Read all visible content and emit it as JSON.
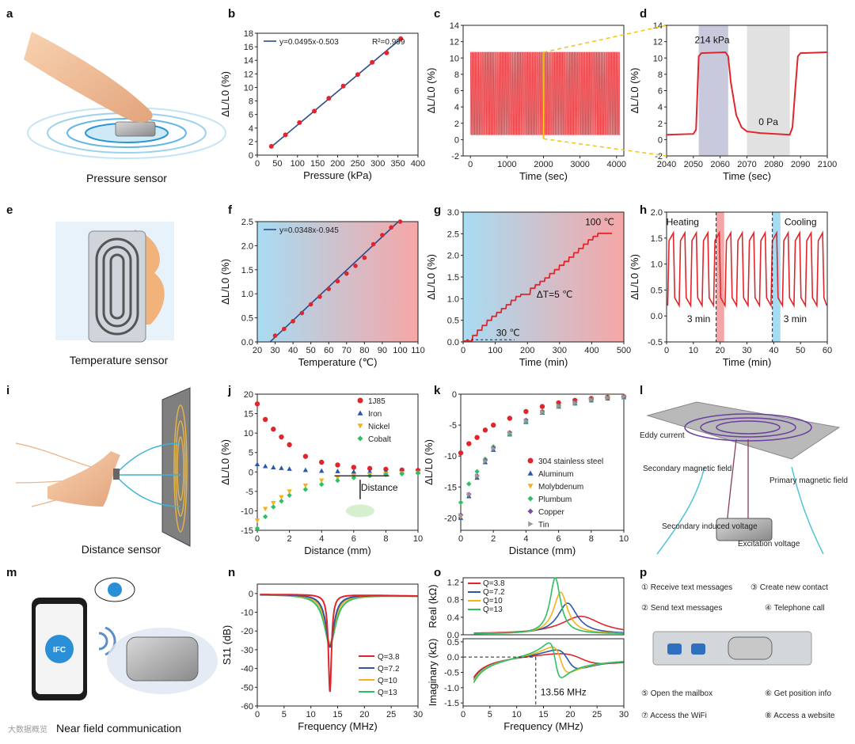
{
  "figure": {
    "panel_letters": [
      "a",
      "b",
      "c",
      "d",
      "e",
      "f",
      "g",
      "h",
      "i",
      "j",
      "k",
      "l",
      "m",
      "n",
      "o",
      "p"
    ],
    "captions": {
      "a": "Pressure sensor",
      "e": "Temperature sensor",
      "i": "Distance sensor",
      "m": "Near field communication"
    },
    "panel_i_label": "Distance",
    "watermark": "大数据概览",
    "panel_l": {
      "labels": [
        "Eddy current",
        "Secondary magnetic field",
        "Primary magnetic field",
        "Secondary induced voltage",
        "Excitation voltage"
      ]
    },
    "panel_m": {
      "logo_text": "IFC"
    },
    "panel_p": {
      "items": [
        "① Receive text messages",
        "③ Create new contact",
        "② Send text messages",
        "④ Telephone call",
        "⑤ Open the mailbox",
        "⑥ Get position info",
        "⑦ Access the WiFi",
        "⑧ Access a website"
      ]
    }
  },
  "chart_data": [
    {
      "id": "b",
      "type": "scatter",
      "xlabel": "Pressure (kPa)",
      "ylabel": "ΔL/L0 (%)",
      "xlim": [
        0,
        400
      ],
      "ylim": [
        0,
        18
      ],
      "xticks": [
        "0",
        "50",
        "100",
        "150",
        "200",
        "250",
        "300",
        "350",
        "400"
      ],
      "yticks": [
        "0",
        "2",
        "4",
        "6",
        "8",
        "10",
        "12",
        "14",
        "16",
        "18"
      ],
      "x": [
        35,
        70,
        105,
        142,
        178,
        214,
        250,
        286,
        322,
        357
      ],
      "y": [
        1.3,
        3.0,
        4.8,
        6.5,
        8.4,
        10.2,
        11.9,
        13.7,
        15.1,
        17.2
      ],
      "fit_label": "y=0.0495x-0.503",
      "r2_label": "R²=0.999",
      "fit_slope": 0.0495,
      "fit_intercept": -0.503,
      "fit_range": [
        35,
        357
      ]
    },
    {
      "id": "c",
      "type": "line",
      "xlabel": "Time (sec)",
      "ylabel": "ΔL/L0 (%)",
      "xlim": [
        -200,
        4200
      ],
      "ylim": [
        -2,
        14
      ],
      "xticks": [
        "0",
        "1000",
        "2000",
        "3000",
        "4000"
      ],
      "yticks": [
        "-2",
        "0",
        "2",
        "4",
        "6",
        "8",
        "10",
        "12",
        "14"
      ],
      "cycles": 100,
      "high": 10.7,
      "low": 0.6,
      "t_start": 0,
      "t_end": 4100,
      "highlight_range": [
        2000,
        2060
      ]
    },
    {
      "id": "d",
      "type": "line",
      "xlabel": "Time (sec)",
      "ylabel": "ΔL/L0 (%)",
      "xlim": [
        2040,
        2100
      ],
      "ylim": [
        -2,
        14
      ],
      "xticks": [
        "2040",
        "2050",
        "2060",
        "2070",
        "2080",
        "2090",
        "2100"
      ],
      "yticks": [
        "-2",
        "0",
        "2",
        "4",
        "6",
        "8",
        "10",
        "12",
        "14"
      ],
      "x": [
        2040,
        2050,
        2051,
        2052,
        2053,
        2062,
        2063,
        2064,
        2066,
        2068,
        2070,
        2075,
        2086,
        2087,
        2088,
        2089,
        2090,
        2100
      ],
      "y": [
        0.6,
        0.7,
        1.2,
        10.2,
        10.6,
        10.7,
        10.2,
        7.0,
        3.0,
        1.5,
        1.0,
        0.8,
        0.6,
        1.5,
        6.0,
        10.2,
        10.6,
        10.7
      ],
      "band_loaded": [
        2052,
        2063
      ],
      "band_unloaded": [
        2070,
        2086
      ],
      "ann_loaded": "214 kPa",
      "ann_unloaded": "0 Pa"
    },
    {
      "id": "f",
      "type": "scatter",
      "xlabel": "Temperature (℃)",
      "ylabel": "ΔL/L0 (%)",
      "xlim": [
        20,
        110
      ],
      "ylim": [
        0,
        2.5
      ],
      "xticks": [
        "20",
        "30",
        "40",
        "50",
        "60",
        "70",
        "80",
        "90",
        "100",
        "110"
      ],
      "yticks": [
        "0.0",
        "0.5",
        "1.0",
        "1.5",
        "2.0",
        "2.5"
      ],
      "x": [
        30,
        35,
        40,
        45,
        50,
        55,
        60,
        65,
        70,
        75,
        80,
        85,
        90,
        95,
        100
      ],
      "y": [
        0.13,
        0.27,
        0.43,
        0.6,
        0.78,
        0.94,
        1.1,
        1.26,
        1.42,
        1.58,
        1.75,
        2.03,
        2.22,
        2.38,
        2.5
      ],
      "fit_label": "y=0.0348x-0.945",
      "fit_slope": 0.0348,
      "fit_intercept": -0.945,
      "fit_range": [
        27,
        100
      ]
    },
    {
      "id": "g",
      "type": "line",
      "xlabel": "Time (min)",
      "ylabel": "ΔL/L0 (%)",
      "xlim": [
        0,
        500
      ],
      "ylim": [
        0,
        3.0
      ],
      "xticks": [
        "0",
        "100",
        "200",
        "300",
        "400",
        "500"
      ],
      "yticks": [
        "0.0",
        "0.5",
        "1.0",
        "1.5",
        "2.0",
        "2.5",
        "3.0"
      ],
      "step_x": [
        0,
        30,
        45,
        60,
        75,
        90,
        105,
        120,
        135,
        150,
        165,
        180,
        195,
        210,
        225,
        240,
        255,
        270,
        285,
        300,
        315,
        330,
        345,
        360,
        375,
        390,
        405,
        420,
        435,
        450
      ],
      "step_y": [
        0.02,
        0.15,
        0.27,
        0.38,
        0.5,
        0.59,
        0.68,
        0.77,
        0.86,
        0.96,
        1.05,
        1.1,
        1.1,
        1.24,
        1.32,
        1.4,
        1.48,
        1.58,
        1.67,
        1.77,
        1.86,
        1.96,
        2.06,
        2.16,
        2.26,
        2.36,
        2.44,
        2.51,
        2.51,
        2.51
      ],
      "ann_start": "30 ℃",
      "ann_step": "ΔT=5 ℃",
      "ann_end": "100 ℃"
    },
    {
      "id": "h",
      "type": "line",
      "xlabel": "Time (min)",
      "ylabel": "ΔL/L0 (%)",
      "xlim": [
        0,
        60
      ],
      "ylim": [
        -0.5,
        2.0
      ],
      "xticks": [
        "0",
        "10",
        "20",
        "30",
        "40",
        "50",
        "60"
      ],
      "yticks": [
        "-0.5",
        "0.0",
        "0.5",
        "1.0",
        "1.5",
        "2.0"
      ],
      "cycles": 14,
      "high": 1.6,
      "low": 0.2,
      "band_heating": [
        18.5,
        21.5
      ],
      "band_cooling": [
        39.5,
        42.5
      ],
      "ann_heating": "Heating",
      "ann_cooling": "Cooling",
      "ann_duration_1": "3 min",
      "ann_duration_2": "3 min"
    },
    {
      "id": "j",
      "type": "scatter",
      "xlabel": "Distance (mm)",
      "ylabel": "ΔL/L0 (%)",
      "xlim": [
        0,
        10
      ],
      "ylim": [
        -15,
        20
      ],
      "xticks": [
        "0",
        "2",
        "4",
        "6",
        "8",
        "10"
      ],
      "yticks": [
        "-15",
        "-10",
        "-5",
        "0",
        "5",
        "10",
        "15",
        "20"
      ],
      "x": [
        0,
        0.5,
        1,
        1.5,
        2,
        3,
        4,
        5,
        6,
        7,
        8,
        9,
        10
      ],
      "series": [
        {
          "name": "1J85",
          "color": "#e0262c",
          "marker": "circle",
          "values": [
            17.5,
            13.5,
            11,
            9,
            7,
            4,
            2.5,
            1.8,
            1.2,
            0.9,
            0.7,
            0.5,
            0.4
          ]
        },
        {
          "name": "Iron",
          "color": "#2b59a8",
          "marker": "triangle",
          "values": [
            2,
            1.5,
            1.2,
            1,
            0.8,
            0.5,
            0.3,
            0.2,
            0.1,
            0.1,
            0.1,
            0,
            0
          ]
        },
        {
          "name": "Nickel",
          "color": "#f2b31b",
          "marker": "triangle-down",
          "values": [
            -12.5,
            -9.5,
            -8,
            -6.5,
            -5,
            -3.5,
            -2.2,
            -1.5,
            -1,
            -0.7,
            -0.5,
            -0.3,
            -0.2
          ]
        },
        {
          "name": "Cobalt",
          "color": "#2fbf63",
          "marker": "diamond",
          "values": [
            -14.5,
            -11.5,
            -9,
            -7.5,
            -6,
            -4.5,
            -3.2,
            -2.2,
            -1.5,
            -1,
            -0.7,
            -0.5,
            -0.3
          ]
        }
      ],
      "inset_label": "Distance"
    },
    {
      "id": "k",
      "type": "scatter",
      "xlabel": "Distance (mm)",
      "ylabel": "ΔL/L0 (%)",
      "xlim": [
        0,
        10
      ],
      "ylim": [
        -22,
        0
      ],
      "xticks": [
        "0",
        "2",
        "4",
        "6",
        "8",
        "10"
      ],
      "yticks": [
        "-20",
        "-15",
        "-10",
        "-5",
        "0"
      ],
      "x": [
        0,
        0.5,
        1,
        1.5,
        2,
        3,
        4,
        5,
        6,
        7,
        8,
        9,
        10
      ],
      "series": [
        {
          "name": "304 stainless steel",
          "color": "#e0262c",
          "marker": "circle",
          "values": [
            -9.5,
            -8,
            -7,
            -5.8,
            -5,
            -3.9,
            -2.8,
            -2,
            -1.4,
            -1,
            -0.7,
            -0.5,
            -0.4
          ]
        },
        {
          "name": "Aluminum",
          "color": "#2b59a8",
          "marker": "triangle",
          "values": [
            -20,
            -16.5,
            -13.5,
            -11,
            -9,
            -6.5,
            -4.5,
            -3,
            -2,
            -1.5,
            -1,
            -0.7,
            -0.5
          ]
        },
        {
          "name": "Molybdenum",
          "color": "#f2b31b",
          "marker": "triangle-down",
          "values": [
            -19.8,
            -16.3,
            -13.3,
            -10.8,
            -8.8,
            -6.3,
            -4.3,
            -2.9,
            -1.9,
            -1.4,
            -0.9,
            -0.6,
            -0.4
          ]
        },
        {
          "name": "Plumbum",
          "color": "#2fbf63",
          "marker": "diamond",
          "values": [
            -17.5,
            -14.5,
            -12.5,
            -10.5,
            -8.5,
            -6.5,
            -4.5,
            -3,
            -2,
            -1.5,
            -1,
            -0.7,
            -0.5
          ]
        },
        {
          "name": "Copper",
          "color": "#7b4fa0",
          "marker": "diamond",
          "values": [
            -19.5,
            -16.2,
            -13.2,
            -10.7,
            -8.7,
            -6.2,
            -4.2,
            -2.8,
            -1.8,
            -1.3,
            -0.9,
            -0.6,
            -0.4
          ]
        },
        {
          "name": "Tin",
          "color": "#9a9a9a",
          "marker": "triangle-right",
          "values": [
            -19.6,
            -16.2,
            -13.2,
            -10.8,
            -8.8,
            -6.3,
            -4.3,
            -2.9,
            -1.9,
            -1.4,
            -0.9,
            -0.6,
            -0.4
          ]
        }
      ]
    },
    {
      "id": "n",
      "type": "line",
      "xlabel": "Frequency (MHz)",
      "ylabel": "S11 (dB)",
      "xlim": [
        0,
        30
      ],
      "ylim": [
        -60,
        5
      ],
      "xticks": [
        "0",
        "5",
        "10",
        "15",
        "20",
        "25",
        "30"
      ],
      "yticks": [
        "-60",
        "-50",
        "-40",
        "-30",
        "-20",
        "-10",
        "0"
      ],
      "center": 13.56,
      "series": [
        {
          "name": "Q=3.8",
          "color": "#e0262c",
          "depth": -52,
          "width": 0.35
        },
        {
          "name": "Q=7.2",
          "color": "#2b59a8",
          "depth": -28,
          "width": 0.9
        },
        {
          "name": "Q=10",
          "color": "#f2b31b",
          "depth": -26,
          "width": 1.1
        },
        {
          "name": "Q=13",
          "color": "#2fbf63",
          "depth": -27,
          "width": 1.3
        }
      ]
    },
    {
      "id": "o",
      "type": "line",
      "xlabel": "Frequency (MHz)",
      "top_ylabel": "Real (kΩ)",
      "bottom_ylabel": "Imaginary (kΩ)",
      "xlim": [
        0,
        30
      ],
      "top_ylim": [
        0,
        1.3
      ],
      "bottom_ylim": [
        -1.6,
        0.6
      ],
      "xticks": [
        "0",
        "5",
        "10",
        "15",
        "20",
        "25",
        "30"
      ],
      "top_yticks": [
        "0.0",
        "0.4",
        "0.8",
        "1.2"
      ],
      "bottom_yticks": [
        "-1.5",
        "-1.0",
        "-0.5",
        "0.0",
        "0.5"
      ],
      "series": [
        {
          "name": "Q=3.8",
          "color": "#e0262c",
          "f0": 22,
          "peak": 0.4,
          "gamma": 4.5
        },
        {
          "name": "Q=7.2",
          "color": "#2b59a8",
          "f0": 19.5,
          "peak": 0.7,
          "gamma": 2.2
        },
        {
          "name": "Q=10",
          "color": "#f2b31b",
          "f0": 18.2,
          "peak": 0.95,
          "gamma": 1.6
        },
        {
          "name": "Q=13",
          "color": "#2fbf63",
          "f0": 17.2,
          "peak": 1.28,
          "gamma": 1.2
        }
      ],
      "marker_freq": 13.56,
      "marker_label": "13.56 MHz"
    }
  ]
}
